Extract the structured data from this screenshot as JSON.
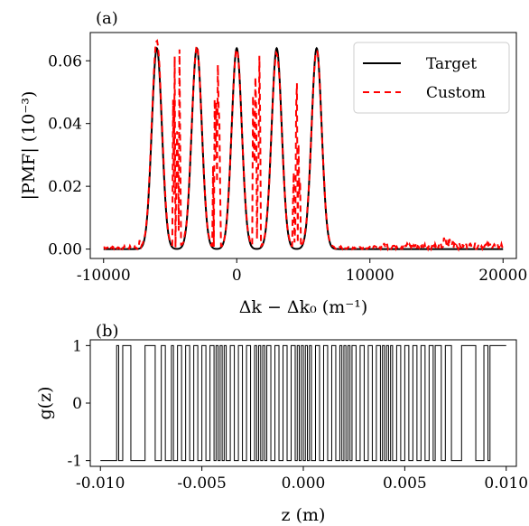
{
  "chart_data": [
    {
      "panel_label": "(a)",
      "type": "line",
      "xlabel": "Δk − Δk₀ (m⁻¹)",
      "ylabel": "|PMF| (10⁻³)",
      "xlim": [
        -11000,
        21000
      ],
      "ylim": [
        -0.003,
        0.069
      ],
      "xticks": [
        {
          "value": -10000,
          "label": "-10000"
        },
        {
          "value": 0,
          "label": "0"
        },
        {
          "value": 10000,
          "label": "10000"
        },
        {
          "value": 20000,
          "label": "20000"
        }
      ],
      "yticks": [
        {
          "value": 0.0,
          "label": "0.00"
        },
        {
          "value": 0.02,
          "label": "0.02"
        },
        {
          "value": 0.04,
          "label": "0.04"
        },
        {
          "value": 0.06,
          "label": "0.06"
        }
      ],
      "legend_position": "top-right",
      "peaks": {
        "centers": [
          -6000,
          -3000,
          0,
          3000,
          6000
        ],
        "target_height": 0.064,
        "custom_heights": [
          0.066,
          0.064,
          0.063,
          0.062,
          0.063
        ],
        "width_sigma": 380
      },
      "series": [
        {
          "name": "Target",
          "style": "solid",
          "color": "#000000",
          "x": [
            -10000,
            -6760,
            -6000,
            -5240,
            -3760,
            -3000,
            -2240,
            -760,
            0,
            760,
            2240,
            3000,
            3760,
            5240,
            6000,
            6760,
            20000
          ],
          "y": [
            0.0,
            0.0,
            0.064,
            0.0,
            0.0,
            0.064,
            0.0,
            0.0,
            0.064,
            0.0,
            0.0,
            0.064,
            0.0,
            0.0,
            0.064,
            0.0,
            0.0
          ]
        },
        {
          "name": "Custom",
          "style": "dashed",
          "color": "#ff0000",
          "x": [
            -10000,
            -9500,
            -8600,
            -7400,
            -6000,
            -3000,
            0,
            3000,
            6000,
            7200,
            9000,
            11000,
            13000,
            15500,
            16500,
            18000,
            19500,
            20000
          ],
          "y": [
            0.001,
            0.003,
            0.001,
            0.003,
            0.066,
            0.064,
            0.063,
            0.062,
            0.063,
            0.002,
            0.001,
            0.002,
            0.002,
            0.004,
            0.004,
            0.002,
            0.002,
            0.006
          ]
        }
      ]
    },
    {
      "panel_label": "(b)",
      "type": "line",
      "xlabel": "z (m)",
      "ylabel": "g(z)",
      "xlim": [
        -0.0105,
        0.0105
      ],
      "ylim": [
        -1.1,
        1.1
      ],
      "xticks": [
        {
          "value": -0.01,
          "label": "-0.010"
        },
        {
          "value": -0.005,
          "label": "-0.005"
        },
        {
          "value": 0.0,
          "label": "0.000"
        },
        {
          "value": 0.005,
          "label": "0.005"
        },
        {
          "value": 0.01,
          "label": "0.010"
        }
      ],
      "yticks": [
        {
          "value": -1,
          "label": "-1"
        },
        {
          "value": 0,
          "label": "0"
        },
        {
          "value": 1,
          "label": "1"
        }
      ],
      "series": [
        {
          "name": "",
          "style": "solid",
          "color": "#000000",
          "step_start_value": -1,
          "switch_points": [
            -0.0092,
            -0.0091,
            -0.0089,
            -0.0085,
            -0.0078,
            -0.0073,
            -0.007,
            -0.0068,
            -0.0065,
            -0.0064,
            -0.0062,
            -0.006,
            -0.0058,
            -0.0056,
            -0.0054,
            -0.0052,
            -0.005,
            -0.0048,
            -0.0046,
            -0.0044,
            -0.0043,
            -0.0042,
            -0.0041,
            -0.004,
            -0.0039,
            -0.0038,
            -0.0036,
            -0.0034,
            -0.0032,
            -0.003,
            -0.0028,
            -0.0026,
            -0.0024,
            -0.0023,
            -0.0022,
            -0.0021,
            -0.002,
            -0.0019,
            -0.0018,
            -0.0016,
            -0.0014,
            -0.0012,
            -0.001,
            -0.0008,
            -0.0006,
            -0.0004,
            -0.0003,
            -0.0002,
            -0.0001,
            0.0,
            0.0001,
            0.0002,
            0.0003,
            0.0004,
            0.0006,
            0.0008,
            0.001,
            0.0012,
            0.0014,
            0.0016,
            0.0018,
            0.0019,
            0.002,
            0.0021,
            0.0022,
            0.0023,
            0.0024,
            0.0026,
            0.0028,
            0.003,
            0.0032,
            0.0034,
            0.0036,
            0.0038,
            0.0039,
            0.004,
            0.0041,
            0.0042,
            0.0043,
            0.0044,
            0.0046,
            0.0048,
            0.005,
            0.0052,
            0.0054,
            0.0056,
            0.0058,
            0.006,
            0.0062,
            0.0064,
            0.0065,
            0.0068,
            0.007,
            0.0073,
            0.0078,
            0.0085,
            0.0089,
            0.0091,
            0.0092
          ]
        }
      ]
    }
  ]
}
